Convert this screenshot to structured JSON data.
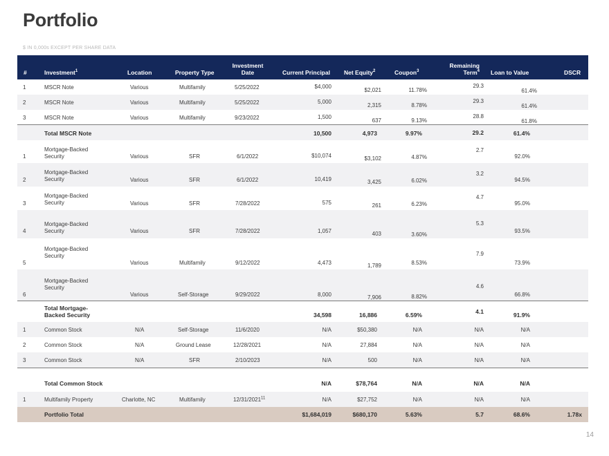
{
  "title": "Portfolio",
  "subtitle": "$ IN 0,000s EXCEPT PER SHARE DATA",
  "page_number": "14",
  "headers": {
    "num": "#",
    "investment": "Investment",
    "investment_sup": "1",
    "location": "Location",
    "property_type": "Property Type",
    "investment_date_1": "Investment",
    "investment_date_2": "Date",
    "current_principal": "Current Principal",
    "net_equity": "Net Equity",
    "net_equity_sup": "2",
    "coupon": "Coupon",
    "coupon_sup": "3",
    "remaining_term_1": "Remaining",
    "remaining_term_2": "Term",
    "remaining_term_sup": "4",
    "ltv": "Loan to Value",
    "dscr": "DSCR"
  },
  "rows": [
    {
      "type": "data",
      "num": "1",
      "investment": "MSCR Note",
      "location": "Various",
      "property_type": "Multifamily",
      "date": "5/25/2022",
      "principal": "$4,000",
      "equity": "$2,021",
      "coupon": "11.78%",
      "term": "29.3",
      "ltv": "61.4%",
      "dscr": ""
    },
    {
      "type": "data",
      "num": "2",
      "investment": "MSCR Note",
      "location": "Various",
      "property_type": "Multifamily",
      "date": "5/25/2022",
      "principal": "5,000",
      "equity": "2,315",
      "coupon": "8.78%",
      "term": "29.3",
      "ltv": "61.4%",
      "dscr": ""
    },
    {
      "type": "data",
      "num": "3",
      "investment": "MSCR Note",
      "location": "Various",
      "property_type": "Multifamily",
      "date": "9/23/2022",
      "principal": "1,500",
      "equity": "637",
      "coupon": "9.13%",
      "term": "28.8",
      "ltv": "61.8%",
      "dscr": ""
    },
    {
      "type": "total",
      "num": "",
      "investment": "Total MSCR Note",
      "location": "",
      "property_type": "",
      "date": "",
      "principal": "10,500",
      "equity": "4,973",
      "coupon": "9.97%",
      "term": "29.2",
      "ltv": "61.4%",
      "dscr": ""
    },
    {
      "type": "data",
      "num": "1",
      "investment": "Mortgage-Backed Security",
      "location": "Various",
      "property_type": "SFR",
      "date": "6/1/2022",
      "principal": "$10,074",
      "equity": "$3,102",
      "coupon": "4.87%",
      "term": "2.7",
      "ltv": "92.0%",
      "dscr": ""
    },
    {
      "type": "data",
      "num": "2",
      "investment": "Mortgage-Backed Security",
      "location": "Various",
      "property_type": "SFR",
      "date": "6/1/2022",
      "principal": "10,419",
      "equity": "3,425",
      "coupon": "6.02%",
      "term": "3.2",
      "ltv": "94.5%",
      "dscr": ""
    },
    {
      "type": "data",
      "num": "3",
      "investment": "Mortgage-Backed Security",
      "location": "Various",
      "property_type": "SFR",
      "date": "7/28/2022",
      "principal": "575",
      "equity": "261",
      "coupon": "6.23%",
      "term": "4.7",
      "ltv": "95.0%",
      "dscr": ""
    },
    {
      "type": "data",
      "num": "4",
      "investment": "Mortgage-Backed Security",
      "location": "Various",
      "property_type": "SFR",
      "date": "7/28/2022",
      "principal": "1,057",
      "equity": "403",
      "coupon": "3.60%",
      "term": "5.3",
      "ltv": "93.5%",
      "dscr": ""
    },
    {
      "type": "data",
      "num": "5",
      "investment": "Mortgage-Backed Security",
      "location": "Various",
      "property_type": "Multifamily",
      "date": "9/12/2022",
      "principal": "4,473",
      "equity": "1,789",
      "coupon": "8.53%",
      "term": "7.9",
      "ltv": "73.9%",
      "dscr": ""
    },
    {
      "type": "data",
      "num": "6",
      "investment": "Mortgage-Backed Security",
      "location": "Various",
      "property_type": "Self-Storage",
      "date": "9/29/2022",
      "principal": "8,000",
      "equity": "7,906",
      "coupon": "8.82%",
      "term": "4.6",
      "ltv": "66.8%",
      "dscr": ""
    },
    {
      "type": "total",
      "num": "",
      "investment": "Total Mortgage-Backed Security",
      "location": "",
      "property_type": "",
      "date": "",
      "principal": "34,598",
      "equity": "16,886",
      "coupon": "6.59%",
      "term": "4.1",
      "ltv": "91.9%",
      "dscr": ""
    },
    {
      "type": "data",
      "num": "1",
      "investment": "Common  Stock",
      "location": "N/A",
      "property_type": "Self-Storage",
      "date": "11/6/2020",
      "principal": "N/A",
      "equity": "$50,380",
      "coupon": "N/A",
      "term": "N/A",
      "ltv": "N/A",
      "dscr": ""
    },
    {
      "type": "data",
      "num": "2",
      "investment": "Common  Stock",
      "location": "N/A",
      "property_type": "Ground Lease",
      "date": "12/28/2021",
      "principal": "N/A",
      "equity": "27,884",
      "coupon": "N/A",
      "term": "N/A",
      "ltv": "N/A",
      "dscr": ""
    },
    {
      "type": "data",
      "num": "3",
      "investment": "Common  Stock",
      "location": "N/A",
      "property_type": "SFR",
      "date": "2/10/2023",
      "principal": "N/A",
      "equity": "500",
      "coupon": "N/A",
      "term": "N/A",
      "ltv": "N/A",
      "dscr": ""
    },
    {
      "type": "total",
      "num": "",
      "investment": "Total Common Stock",
      "location": "",
      "property_type": "",
      "date": "",
      "principal": "N/A",
      "equity": "$78,764",
      "coupon": "N/A",
      "term": "N/A",
      "ltv": "N/A",
      "dscr": ""
    },
    {
      "type": "data",
      "num": "1",
      "investment": "Multifamily  Property",
      "location": "Charlotte,  NC",
      "property_type": "Multifamily",
      "date": "12/31/2021",
      "date_sup": "11",
      "principal": "N/A",
      "equity": "$27,752",
      "coupon": "N/A",
      "term": "N/A",
      "ltv": "N/A",
      "dscr": ""
    },
    {
      "type": "portfolio",
      "num": "",
      "investment": "Portfolio Total",
      "location": "",
      "property_type": "",
      "date": "",
      "principal": "$1,684,019",
      "equity": "$680,170",
      "coupon": "5.63%",
      "term": "5.7",
      "ltv": "68.6%",
      "dscr": "1.78x"
    }
  ]
}
